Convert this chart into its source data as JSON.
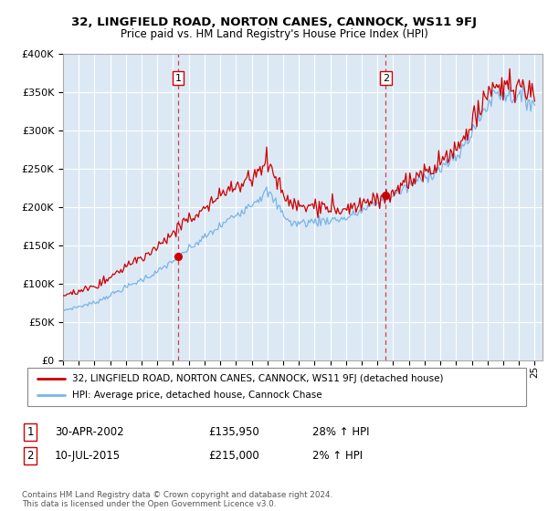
{
  "title1": "32, LINGFIELD ROAD, NORTON CANES, CANNOCK, WS11 9FJ",
  "title2": "Price paid vs. HM Land Registry's House Price Index (HPI)",
  "ylabel_ticks": [
    "£0",
    "£50K",
    "£100K",
    "£150K",
    "£200K",
    "£250K",
    "£300K",
    "£350K",
    "£400K"
  ],
  "ytick_vals": [
    0,
    50000,
    100000,
    150000,
    200000,
    250000,
    300000,
    350000,
    400000
  ],
  "ylim": [
    0,
    400000
  ],
  "xlim_start": 1995.0,
  "xlim_end": 2025.5,
  "bg_color": "#dce9f5",
  "grid_color": "#ffffff",
  "hpi_color": "#7ab4e8",
  "price_color": "#cc0000",
  "sale1_x": 2002.33,
  "sale1_y": 135950,
  "sale2_x": 2015.53,
  "sale2_y": 215000,
  "legend_line1": "32, LINGFIELD ROAD, NORTON CANES, CANNOCK, WS11 9FJ (detached house)",
  "legend_line2": "HPI: Average price, detached house, Cannock Chase",
  "table_row1": [
    "1",
    "30-APR-2002",
    "£135,950",
    "28% ↑ HPI"
  ],
  "table_row2": [
    "2",
    "10-JUL-2015",
    "£215,000",
    "2% ↑ HPI"
  ],
  "footer": "Contains HM Land Registry data © Crown copyright and database right 2024.\nThis data is licensed under the Open Government Licence v3.0.",
  "xtick_years": [
    1995,
    1996,
    1997,
    1998,
    1999,
    2000,
    2001,
    2002,
    2003,
    2004,
    2005,
    2006,
    2007,
    2008,
    2009,
    2010,
    2011,
    2012,
    2013,
    2014,
    2015,
    2016,
    2017,
    2018,
    2019,
    2020,
    2021,
    2022,
    2023,
    2024,
    2025
  ]
}
